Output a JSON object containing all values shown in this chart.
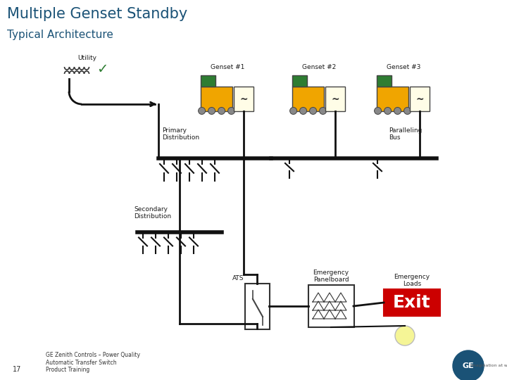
{
  "title": "Multiple Genset Standby",
  "subtitle": "Typical Architecture",
  "title_color": "#1a5276",
  "title_fontsize": 15,
  "subtitle_fontsize": 11,
  "bg_color": "#ffffff",
  "genset_labels": [
    "Genset #1",
    "Genset #2",
    "Genset #3"
  ],
  "utility_label": "Utility",
  "primary_dist_label": "Primary\nDistribution",
  "paralleling_bus_label": "Paralleling\nBus",
  "secondary_dist_label": "Secondary\nDistribution",
  "emergency_panel_label": "Emergency\nPanelboard",
  "emergency_loads_label": "Emergency\nLoads",
  "ats_label": "ATS",
  "page_num": "17",
  "footer_text": "GE Zenith Controls – Power Quality\nAutomatic Transfer Switch\nProduct Training",
  "label_color": "#1a1a1a",
  "bus_color": "#111111",
  "line_color": "#111111",
  "genset_body_color": "#f0a500",
  "genset_engine_color": "#2e7d32",
  "exit_bg": "#cc0000",
  "exit_text": "Exit",
  "exit_text_color": "#ffffff",
  "lw_bus": 4,
  "lw_line": 2.0,
  "lw_thin": 1.5,
  "label_fontsize": 6.5
}
